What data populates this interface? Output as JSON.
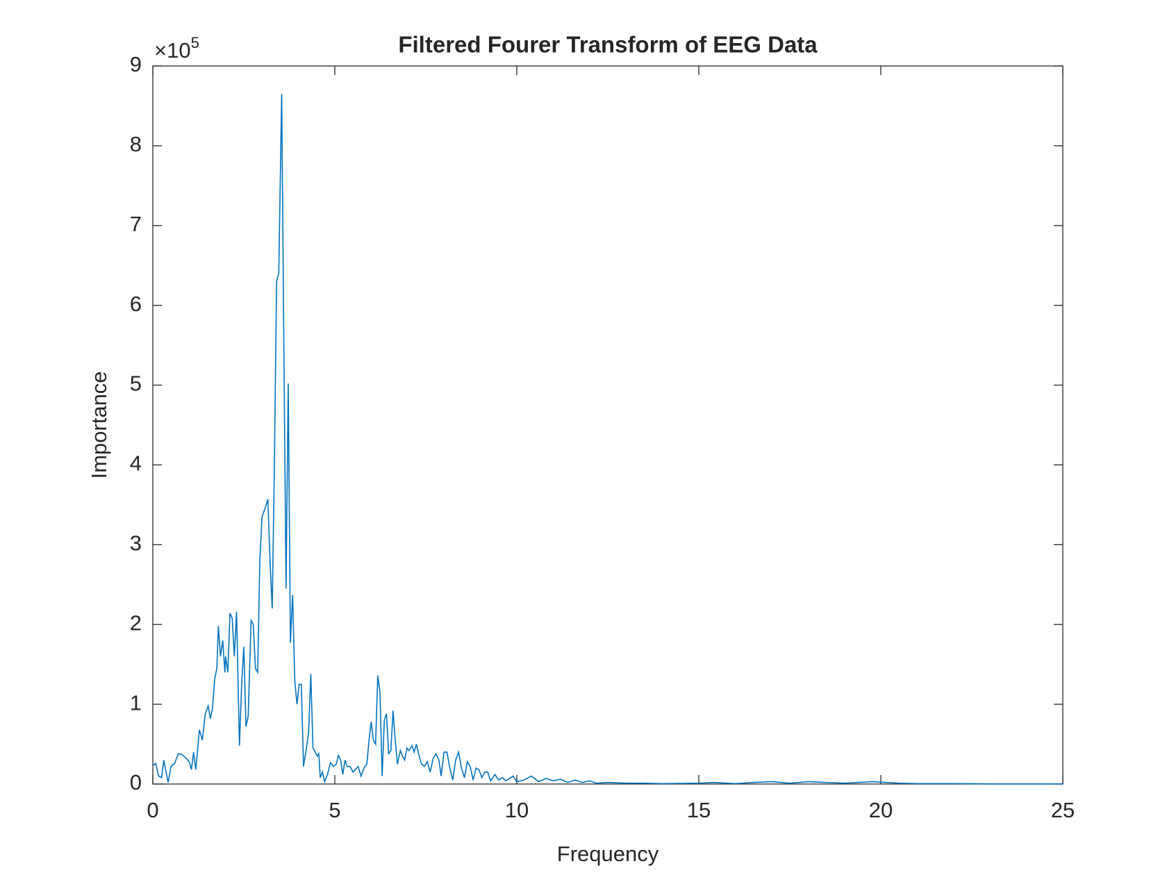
{
  "chart_data": {
    "type": "line",
    "title": "Filtered Fourer Transform of EEG Data",
    "x_label": "Frequency",
    "y_label": "Importance",
    "y_exponent_base": "×10",
    "y_exponent": "5",
    "xlim": [
      0,
      25
    ],
    "xticks": [
      0,
      5,
      10,
      15,
      20,
      25
    ],
    "ylim": [
      0,
      9
    ],
    "yticks": [
      0,
      1,
      2,
      3,
      4,
      5,
      6,
      7,
      8,
      9
    ],
    "series": [
      {
        "color": "#0072bd",
        "x": [
          0,
          0.08,
          0.16,
          0.24,
          0.3,
          0.42,
          0.5,
          0.6,
          0.7,
          0.8,
          0.9,
          1.0,
          1.06,
          1.12,
          1.18,
          1.28,
          1.36,
          1.44,
          1.52,
          1.58,
          1.64,
          1.7,
          1.76,
          1.8,
          1.86,
          1.92,
          1.98,
          2.0,
          2.06,
          2.12,
          2.18,
          2.24,
          2.3,
          2.38,
          2.44,
          2.5,
          2.56,
          2.62,
          2.7,
          2.76,
          2.82,
          2.88,
          2.94,
          3.0,
          3.08,
          3.16,
          3.22,
          3.28,
          3.34,
          3.4,
          3.46,
          3.54,
          3.6,
          3.66,
          3.72,
          3.78,
          3.84,
          3.9,
          3.96,
          4.02,
          4.08,
          4.14,
          4.22,
          4.28,
          4.34,
          4.4,
          4.46,
          4.52,
          4.56,
          4.6,
          4.66,
          4.72,
          4.8,
          4.88,
          4.96,
          5.04,
          5.1,
          5.16,
          5.22,
          5.28,
          5.34,
          5.42,
          5.5,
          5.56,
          5.64,
          5.72,
          5.8,
          5.88,
          5.94,
          6.0,
          6.06,
          6.12,
          6.18,
          6.24,
          6.3,
          6.36,
          6.42,
          6.48,
          6.54,
          6.6,
          6.66,
          6.72,
          6.8,
          6.86,
          6.92,
          6.98,
          7.04,
          7.12,
          7.18,
          7.24,
          7.3,
          7.38,
          7.46,
          7.54,
          7.62,
          7.7,
          7.78,
          7.86,
          7.92,
          8.0,
          8.08,
          8.16,
          8.24,
          8.32,
          8.4,
          8.48,
          8.56,
          8.64,
          8.72,
          8.8,
          8.88,
          8.96,
          9.04,
          9.12,
          9.2,
          9.28,
          9.4,
          9.5,
          9.6,
          9.7,
          9.8,
          9.9,
          10.0,
          10.2,
          10.4,
          10.6,
          10.8,
          11.0,
          11.2,
          11.4,
          11.6,
          11.8,
          12.0,
          12.2,
          12.5,
          13.0,
          13.5,
          14.0,
          15.0,
          15.4,
          16.0,
          16.5,
          17.0,
          17.5,
          18.0,
          18.5,
          19.0,
          19.8,
          20.5,
          21,
          22,
          23,
          24,
          25
        ],
        "values": [
          0.23,
          0.26,
          0.1,
          0.08,
          0.3,
          0.02,
          0.22,
          0.26,
          0.38,
          0.37,
          0.33,
          0.28,
          0.18,
          0.4,
          0.18,
          0.68,
          0.55,
          0.88,
          0.98,
          0.82,
          0.95,
          1.32,
          1.45,
          1.98,
          1.6,
          1.8,
          1.4,
          1.6,
          1.4,
          2.14,
          2.08,
          1.6,
          2.16,
          0.48,
          1.25,
          1.72,
          0.72,
          0.85,
          2.05,
          2.0,
          1.45,
          1.4,
          2.8,
          3.35,
          3.45,
          3.57,
          2.8,
          2.2,
          4.0,
          6.3,
          6.4,
          8.65,
          5.5,
          2.45,
          5.02,
          1.77,
          2.37,
          1.3,
          1.0,
          1.25,
          1.25,
          0.22,
          0.45,
          0.65,
          1.38,
          0.45,
          0.4,
          0.35,
          0.38,
          0.08,
          0.15,
          0.03,
          0.12,
          0.27,
          0.22,
          0.25,
          0.36,
          0.3,
          0.12,
          0.3,
          0.22,
          0.22,
          0.15,
          0.18,
          0.22,
          0.1,
          0.2,
          0.25,
          0.55,
          0.78,
          0.55,
          0.5,
          1.36,
          1.15,
          0.1,
          0.8,
          0.88,
          0.38,
          0.42,
          0.92,
          0.55,
          0.25,
          0.42,
          0.35,
          0.3,
          0.45,
          0.42,
          0.48,
          0.4,
          0.5,
          0.38,
          0.25,
          0.22,
          0.28,
          0.15,
          0.32,
          0.38,
          0.3,
          0.1,
          0.4,
          0.4,
          0.2,
          0.05,
          0.3,
          0.4,
          0.2,
          0.08,
          0.28,
          0.22,
          0.05,
          0.2,
          0.18,
          0.08,
          0.15,
          0.15,
          0.04,
          0.12,
          0.05,
          0.08,
          0.04,
          0.07,
          0.1,
          0.03,
          0.05,
          0.1,
          0.03,
          0.07,
          0.04,
          0.06,
          0.02,
          0.05,
          0.02,
          0.04,
          0.01,
          0.02,
          0.01,
          0.01,
          0.005,
          0.01,
          0.02,
          0.005,
          0.02,
          0.03,
          0.01,
          0.03,
          0.02,
          0.01,
          0.03,
          0.01,
          0.005,
          0.005,
          0.002,
          0.002,
          0.001
        ]
      }
    ]
  }
}
